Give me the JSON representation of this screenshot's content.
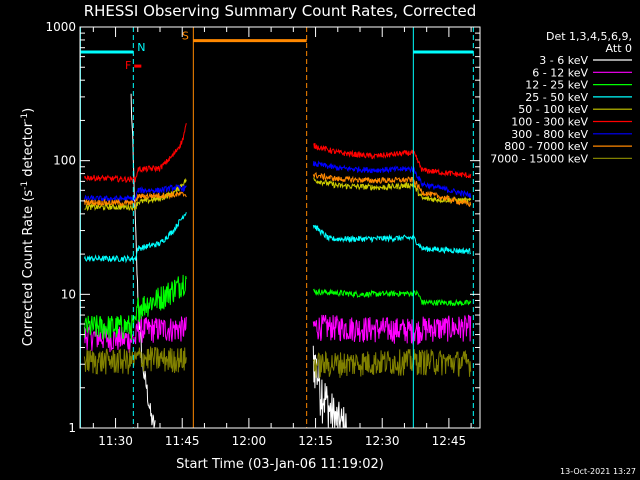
{
  "chart_data": {
    "type": "line",
    "title": "RHESSI Observing Summary Count Rates, Corrected",
    "xlabel": "Start Time (03-Jan-06 11:19:02)",
    "ylabel_parts": [
      "Corrected Count Rate (s",
      "-1",
      " detector",
      "-1",
      ")"
    ],
    "yscale": "log",
    "ylim": [
      1,
      1000
    ],
    "xlim": [
      22.0,
      112.0
    ],
    "x_units": "minutes after 11:00 UT",
    "yticks": [
      {
        "value": 1,
        "label": "1"
      },
      {
        "value": 10,
        "label": "10"
      },
      {
        "value": 100,
        "label": "100"
      },
      {
        "value": 1000,
        "label": "1000"
      }
    ],
    "xticks": [
      {
        "value": 30,
        "label": "11:30"
      },
      {
        "value": 45,
        "label": "11:45"
      },
      {
        "value": 60,
        "label": "12:00"
      },
      {
        "value": 75,
        "label": "12:15"
      },
      {
        "value": 90,
        "label": "12:30"
      },
      {
        "value": 105,
        "label": "12:45"
      }
    ],
    "legend_header": [
      "Det 1,3,4,5,6,9,",
      "Att 0"
    ],
    "series": [
      {
        "name": "3 - 6 keV",
        "color": "#ffffff",
        "points": [
          [
            33.5,
            300
          ],
          [
            34.2,
            60
          ],
          [
            35,
            10
          ],
          [
            36,
            3
          ],
          [
            37,
            2
          ],
          [
            38,
            1.2
          ],
          [
            39,
            1.0
          ]
        ],
        "points2": [
          [
            74.5,
            3.5
          ],
          [
            76,
            2.2
          ],
          [
            78,
            1.4
          ],
          [
            80,
            1.1
          ],
          [
            82,
            1.0
          ]
        ]
      },
      {
        "name": "6 - 12 keV",
        "color": "#ff00ff",
        "segments": [
          [
            23,
            4.9
          ],
          [
            34.5,
            4.6
          ],
          [
            35,
            5.5
          ],
          [
            46,
            5.6
          ]
        ],
        "segments2": [
          [
            74.5,
            5.8
          ],
          [
            98,
            5.4
          ],
          [
            99,
            5.6
          ],
          [
            110,
            5.7
          ]
        ]
      },
      {
        "name": "12 - 25 keV",
        "color": "#00ff00",
        "segments": [
          [
            23,
            5.7
          ],
          [
            34.5,
            5.8
          ],
          [
            35,
            8.0
          ],
          [
            40,
            9.5
          ],
          [
            44,
            11.5
          ],
          [
            46,
            13.5
          ]
        ],
        "segments2": [
          [
            74.5,
            10.5
          ],
          [
            85,
            10.0
          ],
          [
            98,
            10.2
          ],
          [
            99,
            8.7
          ],
          [
            110,
            8.6
          ]
        ]
      },
      {
        "name": "25 - 50 keV",
        "color": "#00ffff",
        "segments": [
          [
            23,
            18.5
          ],
          [
            34.5,
            18.5
          ],
          [
            35,
            22
          ],
          [
            40,
            24
          ],
          [
            43,
            30
          ],
          [
            46,
            42
          ]
        ],
        "segments2": [
          [
            74.5,
            33
          ],
          [
            78,
            26
          ],
          [
            87,
            26
          ],
          [
            97,
            26.5
          ],
          [
            99,
            22
          ],
          [
            110,
            21
          ]
        ]
      },
      {
        "name": "50 - 100 keV",
        "color": "#cccc00",
        "segments": [
          [
            23,
            45
          ],
          [
            34.5,
            45
          ],
          [
            35,
            49
          ],
          [
            40,
            52
          ],
          [
            43,
            57
          ],
          [
            46,
            72
          ]
        ],
        "segments2": [
          [
            74.5,
            72
          ],
          [
            80,
            65
          ],
          [
            90,
            63
          ],
          [
            97,
            66
          ],
          [
            99,
            52
          ],
          [
            110,
            50
          ]
        ]
      },
      {
        "name": "100 - 300 keV",
        "color": "#ff0000",
        "segments": [
          [
            23,
            75
          ],
          [
            34.5,
            72
          ],
          [
            35,
            86
          ],
          [
            40,
            88
          ],
          [
            43,
            110
          ],
          [
            45,
            140
          ],
          [
            46,
            190
          ]
        ],
        "segments2": [
          [
            74.5,
            130
          ],
          [
            80,
            115
          ],
          [
            88,
            108
          ],
          [
            97,
            115
          ],
          [
            99,
            85
          ],
          [
            110,
            77
          ]
        ]
      },
      {
        "name": "300 - 800 keV",
        "color": "#0000ff",
        "segments": [
          [
            23,
            52
          ],
          [
            34.5,
            52
          ],
          [
            35,
            60
          ],
          [
            40,
            60
          ],
          [
            43,
            63
          ],
          [
            46,
            62
          ]
        ],
        "segments2": [
          [
            74.5,
            95
          ],
          [
            80,
            88
          ],
          [
            88,
            85
          ],
          [
            97,
            87
          ],
          [
            99,
            67
          ],
          [
            110,
            55
          ]
        ]
      },
      {
        "name": "800 - 7000 keV",
        "color": "#ff8800",
        "segments": [
          [
            23,
            49
          ],
          [
            34.5,
            48
          ],
          [
            35,
            54
          ],
          [
            40,
            55
          ],
          [
            46,
            56
          ]
        ],
        "segments2": [
          [
            74.5,
            78
          ],
          [
            80,
            73
          ],
          [
            88,
            71
          ],
          [
            97,
            72
          ],
          [
            99,
            58
          ],
          [
            110,
            47
          ]
        ]
      },
      {
        "name": "7000 - 15000 keV",
        "color": "#808000",
        "segments": [
          [
            23,
            3.2
          ],
          [
            34.5,
            3.2
          ],
          [
            35,
            3.4
          ],
          [
            40,
            3.3
          ],
          [
            46,
            3.3
          ]
        ],
        "segments2": [
          [
            74.5,
            3.0
          ],
          [
            85,
            3.1
          ],
          [
            98,
            3.2
          ],
          [
            110,
            3.1
          ]
        ]
      }
    ],
    "annotations": {
      "flags": [
        {
          "label": "N",
          "color": "#00ffff",
          "bar_x": [
            22.0,
            34.0
          ],
          "bar_level": 650
        },
        {
          "label": "S",
          "color": "#ff8800",
          "bar_x": [
            47.5,
            73.0
          ],
          "bar_level": 790
        },
        {
          "label": "",
          "color": "#00ffff",
          "bar_x": [
            97.0,
            110.5
          ],
          "bar_level": 650
        },
        {
          "label": "F",
          "color": "#ff0000",
          "bar_x": [
            34.2,
            35.8
          ],
          "bar_level": 510
        }
      ],
      "vlines": [
        {
          "x": 22.1,
          "color": "#00ffff",
          "style": "solid"
        },
        {
          "x": 34.0,
          "color": "#00ffff",
          "style": "dashed"
        },
        {
          "x": 47.5,
          "color": "#ff8800",
          "style": "solid"
        },
        {
          "x": 73.0,
          "color": "#ff8800",
          "style": "dashed"
        },
        {
          "x": 97.0,
          "color": "#00ffff",
          "style": "solid"
        },
        {
          "x": 110.5,
          "color": "#00ffff",
          "style": "dashed"
        }
      ]
    },
    "footer": "13-Oct-2021 13:27"
  }
}
